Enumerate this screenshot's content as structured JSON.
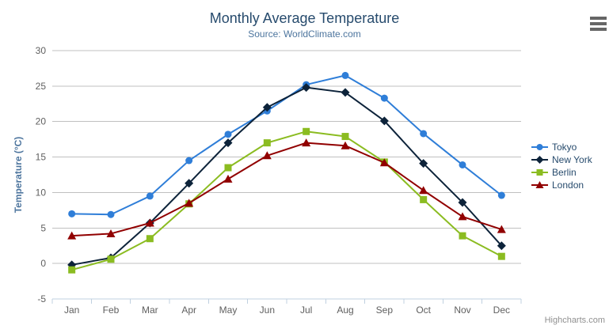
{
  "chart_data": {
    "type": "line",
    "title": "Monthly Average Temperature",
    "subtitle": "Source: WorldClimate.com",
    "credits": "Highcharts.com",
    "categories": [
      "Jan",
      "Feb",
      "Mar",
      "Apr",
      "May",
      "Jun",
      "Jul",
      "Aug",
      "Sep",
      "Oct",
      "Nov",
      "Dec"
    ],
    "xlabel": "",
    "ylabel": "Temperature (°C)",
    "ylim": [
      -5,
      30
    ],
    "ytick_interval": 5,
    "grid": true,
    "legend_position": "right",
    "series": [
      {
        "name": "Tokyo",
        "color": "#2f7ed8",
        "marker": "circle",
        "values": [
          7.0,
          6.9,
          9.5,
          14.5,
          18.2,
          21.5,
          25.2,
          26.5,
          23.3,
          18.3,
          13.9,
          9.6
        ]
      },
      {
        "name": "New York",
        "color": "#0d233a",
        "marker": "diamond",
        "values": [
          -0.2,
          0.8,
          5.7,
          11.3,
          17.0,
          22.0,
          24.8,
          24.1,
          20.1,
          14.1,
          8.6,
          2.5
        ]
      },
      {
        "name": "Berlin",
        "color": "#8bbc21",
        "marker": "square",
        "values": [
          -0.9,
          0.6,
          3.5,
          8.4,
          13.5,
          17.0,
          18.6,
          17.9,
          14.3,
          9.0,
          3.9,
          1.0
        ]
      },
      {
        "name": "London",
        "color": "#910000",
        "marker": "triangle",
        "values": [
          3.9,
          4.2,
          5.7,
          8.5,
          11.9,
          15.2,
          17.0,
          16.6,
          14.2,
          10.3,
          6.6,
          4.8
        ]
      }
    ],
    "style": {
      "background": "#ffffff",
      "title_color": "#274b6d",
      "subtitle_color": "#4d759e",
      "axis_label_color": "#606060",
      "yaxis_title_color": "#4d759e",
      "grid_color": "#c0c0c0",
      "axis_line_color": "#c0d0e0",
      "legend_text_color": "#274b6d",
      "credits_color": "#909090",
      "menu_icon_color": "#666666"
    },
    "icons": {
      "menu": "hamburger-icon"
    }
  }
}
